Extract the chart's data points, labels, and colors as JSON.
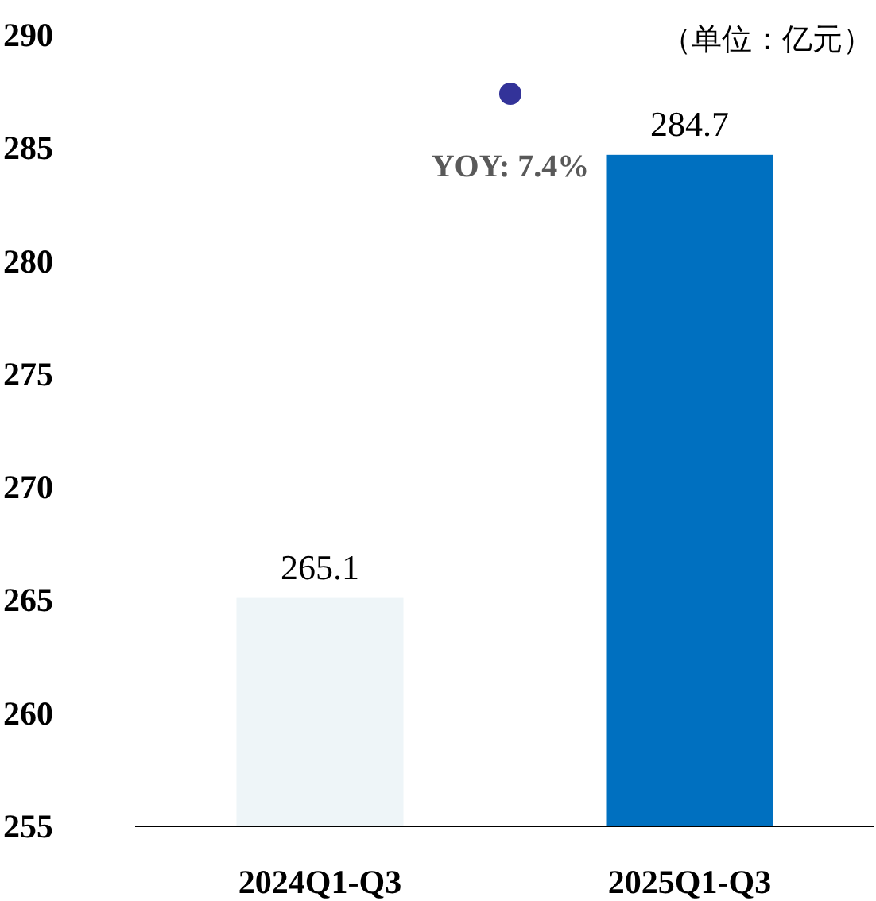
{
  "chart_data": {
    "type": "bar",
    "categories": [
      "2024Q1-Q3",
      "2025Q1-Q3"
    ],
    "values": [
      265.1,
      284.7
    ],
    "colors": [
      "#eef5f8",
      "#0070c0"
    ],
    "ylim": [
      255,
      290
    ],
    "yticks": [
      255,
      260,
      265,
      270,
      275,
      280,
      285,
      290
    ],
    "data_labels": true,
    "annotations": [
      "YOY: 7.4%",
      "（单位：亿元）"
    ]
  }
}
